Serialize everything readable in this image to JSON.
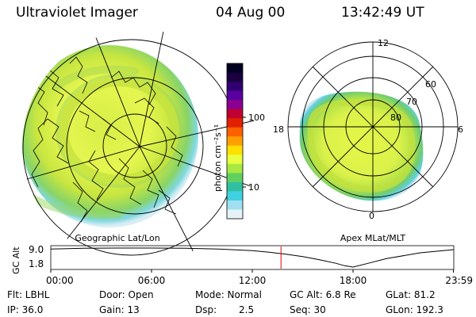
{
  "header": {
    "instrument": "Ultraviolet Imager",
    "date": "04 Aug 00",
    "time": "13:42:49 UT"
  },
  "geo_panel": {
    "label": "Geographic Lat/Lon"
  },
  "apex_panel": {
    "label": "Apex MLat/MLT",
    "mlt_labels": [
      "12",
      "18",
      "6",
      "0"
    ],
    "mlat_labels": [
      "60",
      "70",
      "80"
    ]
  },
  "colorbar": {
    "unit_label": "photon cm⁻²s⁻¹",
    "ticks": [
      "100",
      "10"
    ],
    "colors": [
      "#000020",
      "#1a0040",
      "#300070",
      "#5a00a0",
      "#8a0090",
      "#c00030",
      "#e02000",
      "#ff6000",
      "#ffa000",
      "#ffe000",
      "#e8ff40",
      "#a8e840",
      "#60d060",
      "#30c0a0",
      "#40d0e0",
      "#a0e0f0",
      "#e6f2f5"
    ]
  },
  "chart_data": {
    "type": "line",
    "title": "",
    "ylabel": "GC Alt",
    "y_ticks": [
      "9.0",
      "1.8"
    ],
    "ylim": [
      1.8,
      9.0
    ],
    "x_ticks": [
      "00:00",
      "06:00",
      "12:00",
      "18:00",
      "23:59"
    ],
    "x_hours": [
      0,
      2,
      4,
      6,
      8,
      10,
      12,
      13,
      14,
      15,
      16,
      17,
      17.5,
      18,
      19,
      20,
      22,
      23.98
    ],
    "gc_alt": [
      8.6,
      8.9,
      9.0,
      9.0,
      8.9,
      8.6,
      8.0,
      7.4,
      6.7,
      5.8,
      4.6,
      3.2,
      2.3,
      1.8,
      3.4,
      5.0,
      7.2,
      8.4
    ],
    "current_time_hours": 13.71,
    "marker_color": "#e00000"
  },
  "status": {
    "flt": "Flt: LBHL",
    "door": "Door: Open",
    "mode": "Mode: Normal",
    "gc_alt": "GC Alt: 6.8 Re",
    "glat": "GLat: 81.2",
    "ip": "IP: 36.0",
    "gain": "Gain: 13",
    "dsp_label": "Dsp:",
    "dsp_value": "2.5",
    "seq": "Seq: 30",
    "glon": "GLon: 192.3"
  }
}
